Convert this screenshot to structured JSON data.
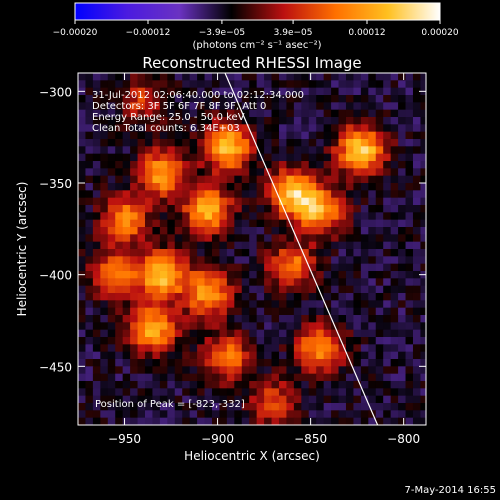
{
  "chart_data": {
    "type": "heatmap",
    "title": "Reconstructed RHESSI Image",
    "xlabel": "Heliocentric X (arcsec)",
    "ylabel": "Heliocentric Y (arcsec)",
    "xlim": [
      -975,
      -788
    ],
    "ylim": [
      -482,
      -290
    ],
    "xticks": [
      -950,
      -900,
      -850,
      -800
    ],
    "xtick_labels": [
      "−950",
      "−900",
      "−850",
      "−800"
    ],
    "yticks": [
      -300,
      -350,
      -400,
      -450
    ],
    "ytick_labels": [
      "−300",
      "−350",
      "−400",
      "−450"
    ],
    "colorbar": {
      "ticks": [
        -0.0002,
        -0.00012,
        -3.9e-05,
        3.9e-05,
        0.00012,
        0.0002
      ],
      "tick_labels": [
        "−0.00020",
        "−0.00012",
        "−3.9e−05",
        "3.9e−05",
        "0.00012",
        "0.00020"
      ],
      "unit_label": "(photons cm⁻² s⁻¹ asec⁻²)",
      "range": [
        -0.0002,
        0.0002
      ],
      "colormap": [
        "#0000ff",
        "#4b1be0",
        "#6a32c2",
        "#000000",
        "#bb1010",
        "#ff7000",
        "#ffc020",
        "#ffffff"
      ]
    },
    "annotations": {
      "time_range": "31-Jul-2012 02:06:40.000 to 02:12:34.000",
      "detectors": "Detectors: 3F 5F 6F 7F 8F 9F, Att 0",
      "energy_range": "Energy Range: 25.0 - 50.0 keV",
      "method": "Clean   Total counts: 6.34E+03",
      "peak": "Position of Peak = [-823,-332]"
    },
    "limb_line": [
      [
        -896,
        -290
      ],
      [
        -814,
        -482
      ]
    ],
    "sources": [
      {
        "x": -895,
        "y": -330,
        "intensity": 0.00019
      },
      {
        "x": -930,
        "y": -345,
        "intensity": 0.00016
      },
      {
        "x": -905,
        "y": -365,
        "intensity": 0.00017
      },
      {
        "x": -950,
        "y": -370,
        "intensity": 0.00014
      },
      {
        "x": -930,
        "y": -400,
        "intensity": 0.00018
      },
      {
        "x": -955,
        "y": -400,
        "intensity": 0.00014
      },
      {
        "x": -905,
        "y": -410,
        "intensity": 0.00016
      },
      {
        "x": -935,
        "y": -430,
        "intensity": 0.00017
      },
      {
        "x": -895,
        "y": -445,
        "intensity": 0.00013
      },
      {
        "x": -860,
        "y": -355,
        "intensity": 0.00018
      },
      {
        "x": -845,
        "y": -365,
        "intensity": 0.00016
      },
      {
        "x": -823,
        "y": -332,
        "intensity": 0.0002
      },
      {
        "x": -860,
        "y": -395,
        "intensity": 0.00013
      },
      {
        "x": -845,
        "y": -440,
        "intensity": 0.00015
      },
      {
        "x": -870,
        "y": -470,
        "intensity": 0.0001
      },
      {
        "x": -940,
        "y": -305,
        "intensity": 9e-05
      }
    ]
  },
  "footer": {
    "date": "7-May-2014 16:55"
  }
}
